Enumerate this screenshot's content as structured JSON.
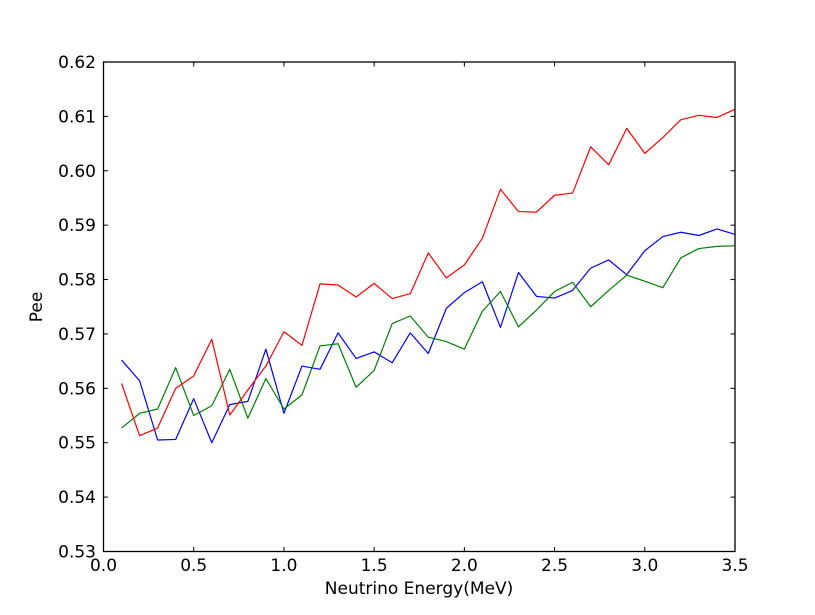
{
  "figure": {
    "background_color": "#ffffff",
    "frame_color": "#000000"
  },
  "chart_data": {
    "type": "line",
    "title": "",
    "xlabel": "Neutrino Energy(MeV)",
    "ylabel": "Pee",
    "xlim": [
      0.0,
      3.5
    ],
    "ylim": [
      0.53,
      0.62
    ],
    "grid": false,
    "legend": "none",
    "x_ticks": [
      "0.0",
      "0.5",
      "1.0",
      "1.5",
      "2.0",
      "2.5",
      "3.0",
      "3.5"
    ],
    "y_ticks": [
      "0.53",
      "0.54",
      "0.55",
      "0.56",
      "0.57",
      "0.58",
      "0.59",
      "0.60",
      "0.61",
      "0.62"
    ],
    "x": [
      0.1,
      0.2,
      0.3,
      0.4,
      0.5,
      0.6,
      0.7,
      0.8,
      0.9,
      1.0,
      1.1,
      1.2,
      1.3,
      1.4,
      1.5,
      1.6,
      1.7,
      1.8,
      1.9,
      2.0,
      2.1,
      2.2,
      2.3,
      2.4,
      2.5,
      2.6,
      2.7,
      2.8,
      2.9,
      3.0,
      3.1,
      3.2,
      3.3,
      3.4,
      3.5
    ],
    "series": [
      {
        "name": "blue-line",
        "color": "#0000ff",
        "values": [
          0.5652,
          0.5614,
          0.5505,
          0.5506,
          0.5581,
          0.55,
          0.557,
          0.5576,
          0.5672,
          0.5554,
          0.5641,
          0.5635,
          0.5702,
          0.5655,
          0.5667,
          0.5647,
          0.5702,
          0.5664,
          0.5747,
          0.5776,
          0.5796,
          0.5712,
          0.5813,
          0.5769,
          0.5766,
          0.578,
          0.5821,
          0.5836,
          0.5809,
          0.5853,
          0.5879,
          0.5887,
          0.5881,
          0.5893,
          0.5883
        ]
      },
      {
        "name": "green-line",
        "color": "#008000",
        "values": [
          0.5527,
          0.5554,
          0.5562,
          0.5638,
          0.555,
          0.5568,
          0.5635,
          0.5545,
          0.5618,
          0.5562,
          0.5588,
          0.5678,
          0.5682,
          0.5602,
          0.5633,
          0.5719,
          0.5733,
          0.5694,
          0.5686,
          0.5672,
          0.5742,
          0.5778,
          0.5713,
          0.5744,
          0.5778,
          0.5795,
          0.575,
          0.578,
          0.5808,
          0.5797,
          0.5785,
          0.584,
          0.5857,
          0.5861,
          0.5862
        ]
      },
      {
        "name": "red-line",
        "color": "#ff0000",
        "values": [
          0.5609,
          0.5513,
          0.5527,
          0.56,
          0.5623,
          0.569,
          0.5551,
          0.5597,
          0.5641,
          0.5704,
          0.5679,
          0.5792,
          0.579,
          0.5768,
          0.5793,
          0.5765,
          0.5774,
          0.5849,
          0.5803,
          0.5827,
          0.5876,
          0.5966,
          0.5925,
          0.5924,
          0.5955,
          0.5959,
          0.6044,
          0.6011,
          0.6078,
          0.6032,
          0.6061,
          0.6094,
          0.6102,
          0.6098,
          0.6113
        ]
      }
    ]
  }
}
